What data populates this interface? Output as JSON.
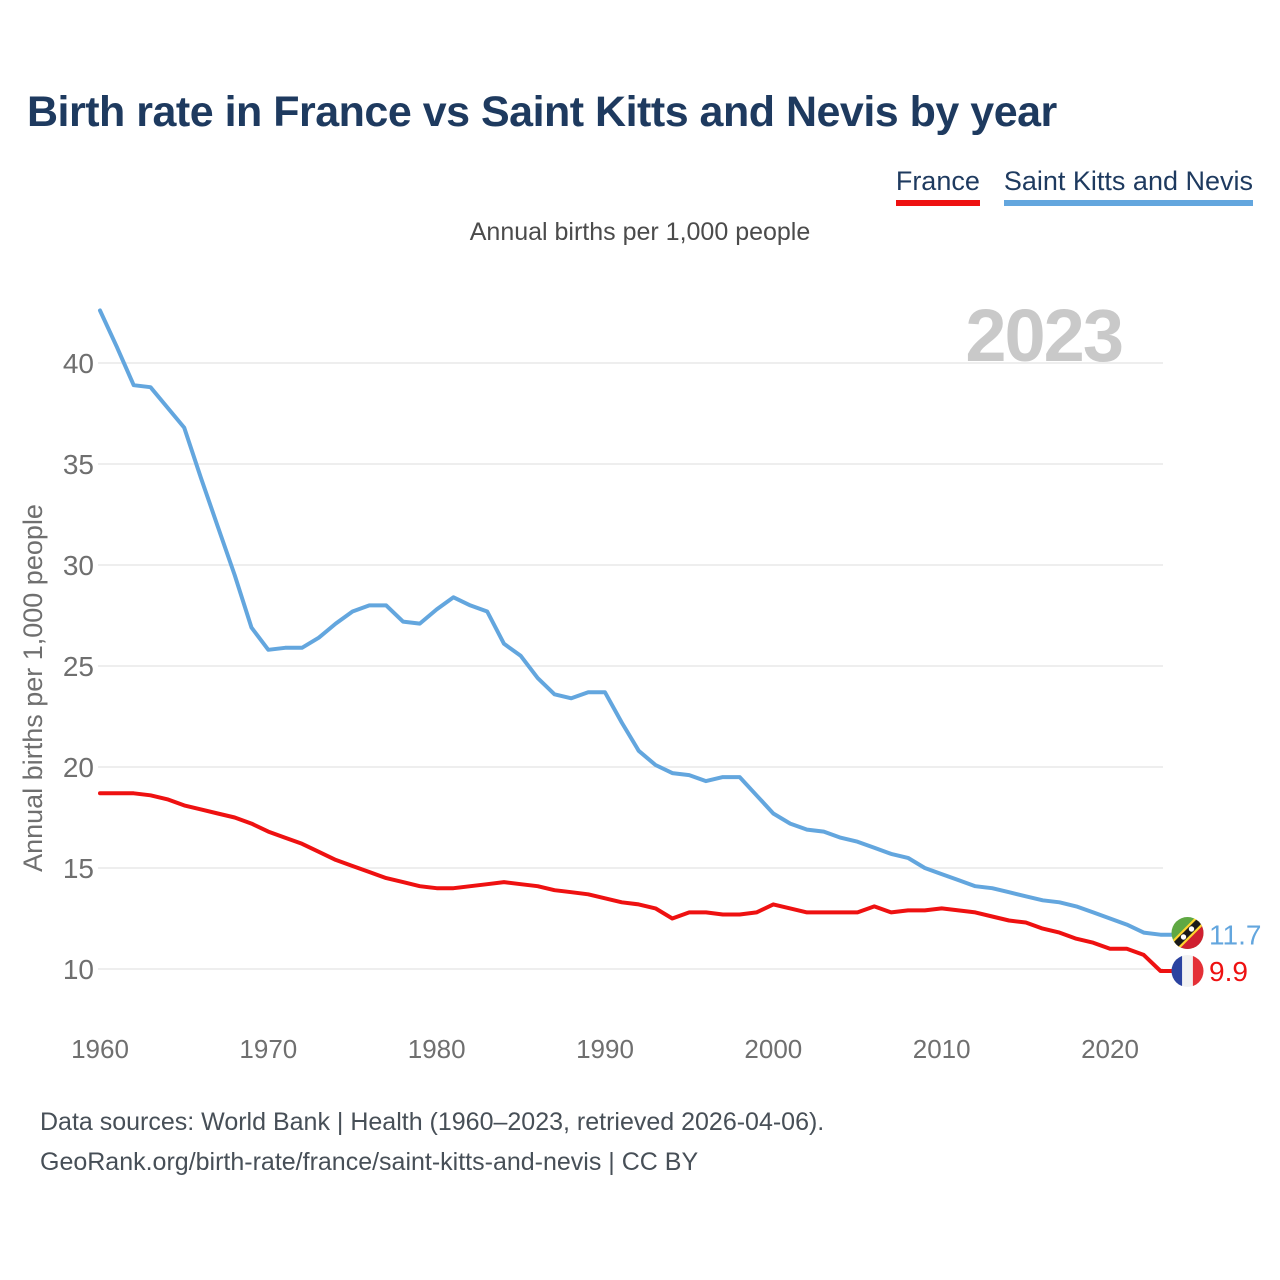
{
  "header": {
    "title": "Birth rate in France vs Saint Kitts and Nevis by year"
  },
  "legend": [
    {
      "label": "France",
      "color": "#ee1111"
    },
    {
      "label": "Saint Kitts and Nevis",
      "color": "#63a6de"
    }
  ],
  "subtitle": "Annual births per 1,000 people",
  "watermark": "2023",
  "icons": {
    "france_flag": "france-flag-icon",
    "saint_kitts_and_nevis_flag": "saint-kitts-and-nevis-flag-icon"
  },
  "colors": {
    "france": "#ee1111",
    "saint_kitts_and_nevis": "#63a6de",
    "title_text": "#1e3a5f",
    "tick_text": "#6f6f6f",
    "watermark": "#c9c9c9",
    "gridline": "#e8e8e8"
  },
  "chart_data": {
    "type": "line",
    "title": "Birth rate in France vs Saint Kitts and Nevis by year",
    "subtitle": "Annual births per 1,000 people",
    "xlabel": "",
    "ylabel": "Annual births per 1,000 people",
    "x_ticks": [
      1960,
      1970,
      1980,
      1990,
      2000,
      2010,
      2020
    ],
    "y_ticks": [
      10,
      15,
      20,
      25,
      30,
      35,
      40
    ],
    "xlim": [
      1960,
      2023
    ],
    "ylim": [
      9,
      43.5
    ],
    "grid": true,
    "legend_position": "top-right",
    "series": [
      {
        "name": "Saint Kitts and Nevis",
        "color": "#63a6de",
        "end_label": "11.7",
        "values": [
          [
            1960,
            42.6
          ],
          [
            1961,
            40.8
          ],
          [
            1962,
            38.9
          ],
          [
            1963,
            38.8
          ],
          [
            1964,
            37.8
          ],
          [
            1965,
            36.8
          ],
          [
            1966,
            34.3
          ],
          [
            1967,
            31.9
          ],
          [
            1968,
            29.5
          ],
          [
            1969,
            26.9
          ],
          [
            1970,
            25.8
          ],
          [
            1971,
            25.9
          ],
          [
            1972,
            25.9
          ],
          [
            1973,
            26.4
          ],
          [
            1974,
            27.1
          ],
          [
            1975,
            27.7
          ],
          [
            1976,
            28.0
          ],
          [
            1977,
            28.0
          ],
          [
            1978,
            27.2
          ],
          [
            1979,
            27.1
          ],
          [
            1980,
            27.8
          ],
          [
            1981,
            28.4
          ],
          [
            1982,
            28.0
          ],
          [
            1983,
            27.7
          ],
          [
            1984,
            26.1
          ],
          [
            1985,
            25.5
          ],
          [
            1986,
            24.4
          ],
          [
            1987,
            23.6
          ],
          [
            1988,
            23.4
          ],
          [
            1989,
            23.7
          ],
          [
            1990,
            23.7
          ],
          [
            1991,
            22.2
          ],
          [
            1992,
            20.8
          ],
          [
            1993,
            20.1
          ],
          [
            1994,
            19.7
          ],
          [
            1995,
            19.6
          ],
          [
            1996,
            19.3
          ],
          [
            1997,
            19.5
          ],
          [
            1998,
            19.5
          ],
          [
            1999,
            18.6
          ],
          [
            2000,
            17.7
          ],
          [
            2001,
            17.2
          ],
          [
            2002,
            16.9
          ],
          [
            2003,
            16.8
          ],
          [
            2004,
            16.5
          ],
          [
            2005,
            16.3
          ],
          [
            2006,
            16.0
          ],
          [
            2007,
            15.7
          ],
          [
            2008,
            15.5
          ],
          [
            2009,
            15.0
          ],
          [
            2010,
            14.7
          ],
          [
            2011,
            14.4
          ],
          [
            2012,
            14.1
          ],
          [
            2013,
            14.0
          ],
          [
            2014,
            13.8
          ],
          [
            2015,
            13.6
          ],
          [
            2016,
            13.4
          ],
          [
            2017,
            13.3
          ],
          [
            2018,
            13.1
          ],
          [
            2019,
            12.8
          ],
          [
            2020,
            12.5
          ],
          [
            2021,
            12.2
          ],
          [
            2022,
            11.8
          ],
          [
            2023,
            11.7
          ]
        ]
      },
      {
        "name": "France",
        "color": "#ee1111",
        "end_label": "9.9",
        "values": [
          [
            1960,
            18.7
          ],
          [
            1961,
            18.7
          ],
          [
            1962,
            18.7
          ],
          [
            1963,
            18.6
          ],
          [
            1964,
            18.4
          ],
          [
            1965,
            18.1
          ],
          [
            1966,
            17.9
          ],
          [
            1967,
            17.7
          ],
          [
            1968,
            17.5
          ],
          [
            1969,
            17.2
          ],
          [
            1970,
            16.8
          ],
          [
            1971,
            16.5
          ],
          [
            1972,
            16.2
          ],
          [
            1973,
            15.8
          ],
          [
            1974,
            15.4
          ],
          [
            1975,
            15.1
          ],
          [
            1976,
            14.8
          ],
          [
            1977,
            14.5
          ],
          [
            1978,
            14.3
          ],
          [
            1979,
            14.1
          ],
          [
            1980,
            14.0
          ],
          [
            1981,
            14.0
          ],
          [
            1982,
            14.1
          ],
          [
            1983,
            14.2
          ],
          [
            1984,
            14.3
          ],
          [
            1985,
            14.2
          ],
          [
            1986,
            14.1
          ],
          [
            1987,
            13.9
          ],
          [
            1988,
            13.8
          ],
          [
            1989,
            13.7
          ],
          [
            1990,
            13.5
          ],
          [
            1991,
            13.3
          ],
          [
            1992,
            13.2
          ],
          [
            1993,
            13.0
          ],
          [
            1994,
            12.5
          ],
          [
            1995,
            12.8
          ],
          [
            1996,
            12.8
          ],
          [
            1997,
            12.7
          ],
          [
            1998,
            12.7
          ],
          [
            1999,
            12.8
          ],
          [
            2000,
            13.2
          ],
          [
            2001,
            13.0
          ],
          [
            2002,
            12.8
          ],
          [
            2003,
            12.8
          ],
          [
            2004,
            12.8
          ],
          [
            2005,
            12.8
          ],
          [
            2006,
            13.1
          ],
          [
            2007,
            12.8
          ],
          [
            2008,
            12.9
          ],
          [
            2009,
            12.9
          ],
          [
            2010,
            13.0
          ],
          [
            2011,
            12.9
          ],
          [
            2012,
            12.8
          ],
          [
            2013,
            12.6
          ],
          [
            2014,
            12.4
          ],
          [
            2015,
            12.3
          ],
          [
            2016,
            12.0
          ],
          [
            2017,
            11.8
          ],
          [
            2018,
            11.5
          ],
          [
            2019,
            11.3
          ],
          [
            2020,
            11.0
          ],
          [
            2021,
            11.0
          ],
          [
            2022,
            10.7
          ],
          [
            2023,
            9.9
          ]
        ]
      }
    ]
  },
  "footer": {
    "line1": "Data sources: World Bank | Health (1960–2023, retrieved 2026-04-06).",
    "line2": "GeoRank.org/birth-rate/france/saint-kitts-and-nevis | CC BY"
  }
}
